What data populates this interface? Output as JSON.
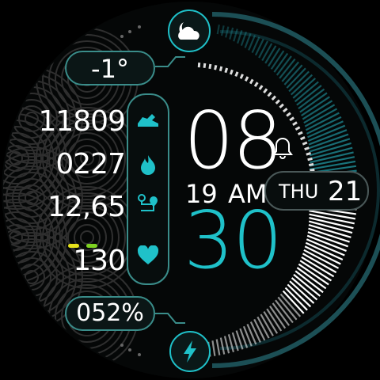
{
  "weather": {
    "icon": "cloud-moon-icon",
    "temperature": "-1°"
  },
  "stats": [
    {
      "value": "11809",
      "icon": "shoe-icon"
    },
    {
      "value": "0227",
      "icon": "flame-icon"
    },
    {
      "value": "12,65",
      "icon": "route-icon"
    },
    {
      "value": "130",
      "icon": "heart-icon"
    }
  ],
  "time": {
    "hour": "08",
    "minute": "30",
    "seconds": "19",
    "ampm": "AM"
  },
  "date": {
    "weekday": "THU",
    "day": "21"
  },
  "battery": {
    "percent_label": "052%",
    "icon": "lightning-icon",
    "level": 0.52
  },
  "alarm_icon": "bell-icon",
  "colors": {
    "accent": "#1fc1c9",
    "pill_border": "#3a8d8a",
    "dot_yellow": "#e6e21b",
    "dot_green": "#7ed321"
  }
}
